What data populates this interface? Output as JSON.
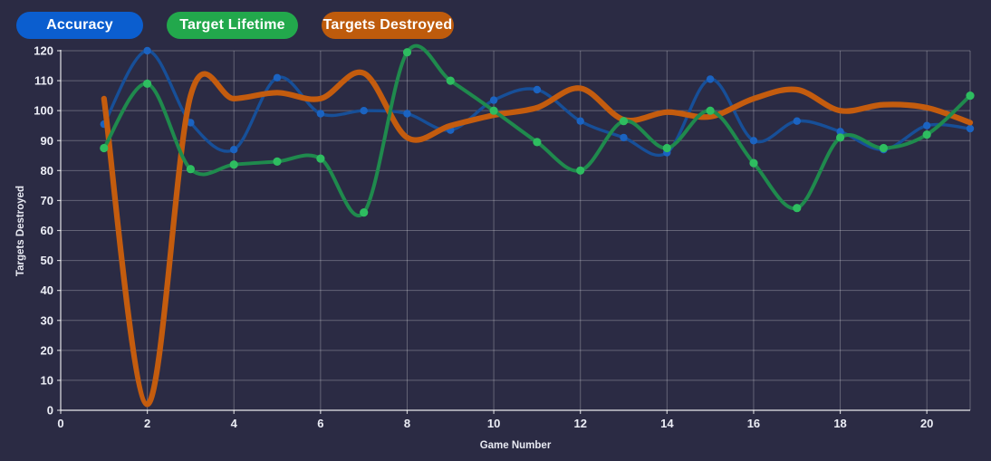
{
  "legend": [
    {
      "label": "Accuracy",
      "color": "#0b5ecf"
    },
    {
      "label": "Target Lifetime",
      "color": "#22a84c"
    },
    {
      "label": "Targets Destroyed",
      "color": "#be5b0c"
    }
  ],
  "colors": {
    "background": "#2b2b44",
    "grid": "rgba(255,255,255,0.27)",
    "axis": "rgba(255,255,255,0.75)",
    "tick_text": "#eceef6"
  },
  "chart_data": {
    "type": "line",
    "title": "",
    "xlabel": "Game Number",
    "ylabel": "Targets Destroyed",
    "xlim": [
      0,
      21
    ],
    "ylim": [
      0,
      120
    ],
    "x_ticks": [
      0,
      2,
      4,
      6,
      8,
      10,
      12,
      14,
      16,
      18,
      20
    ],
    "y_ticks": [
      0,
      10,
      20,
      30,
      40,
      50,
      60,
      70,
      80,
      90,
      100,
      110,
      120
    ],
    "grid": true,
    "legend_position": "top-left",
    "x": [
      1,
      2,
      3,
      4,
      5,
      6,
      7,
      8,
      9,
      10,
      11,
      12,
      13,
      14,
      15,
      16,
      17,
      18,
      19,
      20,
      21
    ],
    "series": [
      {
        "name": "Accuracy",
        "line_color": "#174f98",
        "point_color": "#1b63c1",
        "line_width": 3.4,
        "point_radius": 4.2,
        "show_points": true,
        "z": 0,
        "values": [
          95.5,
          120,
          96,
          87,
          111,
          99,
          100,
          99,
          93.5,
          103.5,
          107,
          96.5,
          91,
          86,
          110.5,
          90,
          96.5,
          93,
          87,
          95,
          94
        ]
      },
      {
        "name": "Target Lifetime",
        "line_color": "#1f8a4d",
        "point_color": "#2ebd60",
        "line_width": 4,
        "point_radius": 4.6,
        "show_points": true,
        "z": 2,
        "values": [
          87.5,
          109,
          80.5,
          82,
          83,
          84,
          66,
          119.5,
          110,
          100,
          89.5,
          80,
          96.5,
          87.5,
          100,
          82.5,
          67.5,
          91,
          87.5,
          92,
          105
        ]
      },
      {
        "name": "Targets Destroyed",
        "line_color": "#c45c0e",
        "point_color": "#c45c0e",
        "line_width": 6.2,
        "point_radius": 0,
        "show_points": false,
        "z": 1,
        "values": [
          104,
          2,
          105,
          104,
          106,
          104,
          112.5,
          91,
          95,
          98.5,
          101,
          107.5,
          97,
          99.5,
          98,
          104,
          107,
          100,
          102,
          101,
          96
        ]
      }
    ]
  }
}
